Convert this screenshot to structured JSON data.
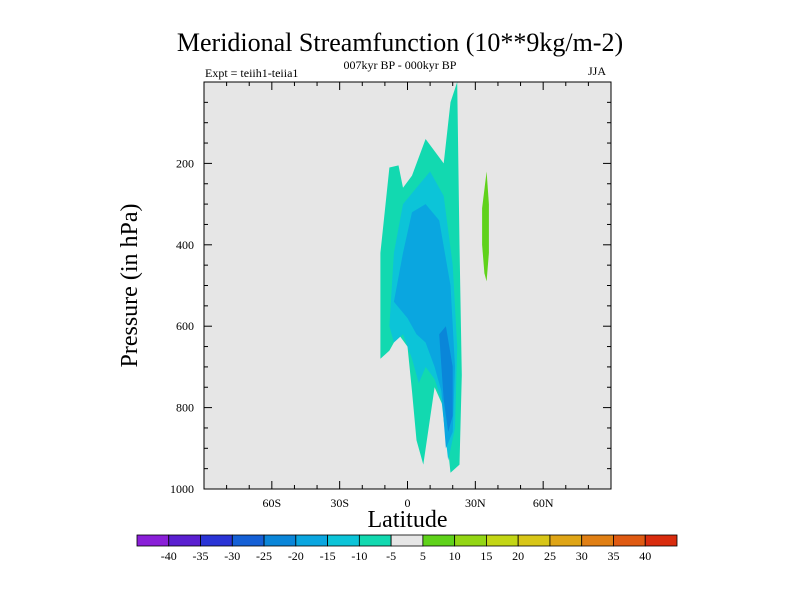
{
  "header": {
    "title": "Meridional Streamfunction (10**9kg/m-2)",
    "left": "Expt = teiih1-teiia1",
    "center": "007kyr BP - 000kyr BP",
    "right": "JJA"
  },
  "chart_data": {
    "type": "heatmap",
    "title": "Meridional Streamfunction (10**9kg/m-2)",
    "xlabel": "Latitude",
    "ylabel": "Pressure (in hPa)",
    "xlim": [
      -90,
      90
    ],
    "ylim": [
      1000,
      0
    ],
    "x_ticks": [
      {
        "value": -60,
        "label": "60S"
      },
      {
        "value": -30,
        "label": "30S"
      },
      {
        "value": 0,
        "label": "0"
      },
      {
        "value": 30,
        "label": "30N"
      },
      {
        "value": 60,
        "label": "60N"
      }
    ],
    "y_ticks": [
      {
        "value": 200,
        "label": "200"
      },
      {
        "value": 400,
        "label": "400"
      },
      {
        "value": 600,
        "label": "600"
      },
      {
        "value": 800,
        "label": "800"
      },
      {
        "value": 1000,
        "label": "1000"
      }
    ],
    "background_color": "#e6e6e6",
    "contour_levels": [
      -40,
      -35,
      -30,
      -25,
      -20,
      -15,
      -10,
      -5,
      5,
      10,
      15,
      20,
      25,
      30,
      35,
      40
    ],
    "colorbar_colors": [
      "#8a1fd8",
      "#5a1fd0",
      "#2a34d6",
      "#1560d6",
      "#0a86d9",
      "#0aa6e0",
      "#0cc4d8",
      "#12d9b0",
      "#e6e6e6",
      "#5fd21a",
      "#93d614",
      "#c3d615",
      "#d8c617",
      "#dfa516",
      "#e07f14",
      "#df5a12",
      "#d92c0e"
    ],
    "regions": [
      {
        "level": -5,
        "color": "#12d9b0",
        "points": [
          [
            -12,
            680
          ],
          [
            -12,
            420
          ],
          [
            -8,
            210
          ],
          [
            -4,
            205
          ],
          [
            -2,
            260
          ],
          [
            2,
            230
          ],
          [
            8,
            140
          ],
          [
            16,
            200
          ],
          [
            19,
            50
          ],
          [
            22,
            0
          ],
          [
            23,
            400
          ],
          [
            24,
            720
          ],
          [
            23,
            940
          ],
          [
            19,
            960
          ],
          [
            16,
            800
          ],
          [
            12,
            750
          ],
          [
            7,
            940
          ],
          [
            4,
            880
          ],
          [
            2,
            760
          ],
          [
            0,
            650
          ],
          [
            -4,
            620
          ],
          [
            -8,
            660
          ]
        ]
      },
      {
        "level": -10,
        "color": "#0cc4d8",
        "points": [
          [
            -8,
            600
          ],
          [
            -6,
            420
          ],
          [
            -2,
            300
          ],
          [
            4,
            260
          ],
          [
            10,
            220
          ],
          [
            16,
            280
          ],
          [
            20,
            450
          ],
          [
            22,
            650
          ],
          [
            21,
            850
          ],
          [
            18,
            930
          ],
          [
            15,
            780
          ],
          [
            12,
            730
          ],
          [
            8,
            700
          ],
          [
            5,
            740
          ],
          [
            2,
            680
          ],
          [
            -2,
            620
          ],
          [
            -6,
            640
          ]
        ]
      },
      {
        "level": -15,
        "color": "#0aa6e0",
        "points": [
          [
            -6,
            540
          ],
          [
            -2,
            420
          ],
          [
            2,
            320
          ],
          [
            8,
            300
          ],
          [
            14,
            340
          ],
          [
            19,
            500
          ],
          [
            21,
            700
          ],
          [
            20,
            860
          ],
          [
            17,
            900
          ],
          [
            15,
            760
          ],
          [
            12,
            700
          ],
          [
            8,
            640
          ],
          [
            4,
            620
          ],
          [
            0,
            580
          ]
        ]
      },
      {
        "level": -20,
        "color": "#0a86d9",
        "points": [
          [
            14,
            620
          ],
          [
            17,
            600
          ],
          [
            20,
            700
          ],
          [
            20,
            820
          ],
          [
            18,
            860
          ],
          [
            16,
            780
          ],
          [
            15,
            700
          ]
        ]
      },
      {
        "level": 10,
        "color": "#5fd21a",
        "points": [
          [
            33,
            310
          ],
          [
            35,
            220
          ],
          [
            36,
            300
          ],
          [
            36,
            420
          ],
          [
            35,
            490
          ],
          [
            34,
            470
          ],
          [
            33,
            400
          ]
        ]
      }
    ]
  },
  "colorbar": {
    "labels": [
      "-40",
      "-35",
      "-30",
      "-25",
      "-20",
      "-15",
      "-10",
      "-5",
      "5",
      "10",
      "15",
      "20",
      "25",
      "30",
      "35",
      "40"
    ]
  }
}
